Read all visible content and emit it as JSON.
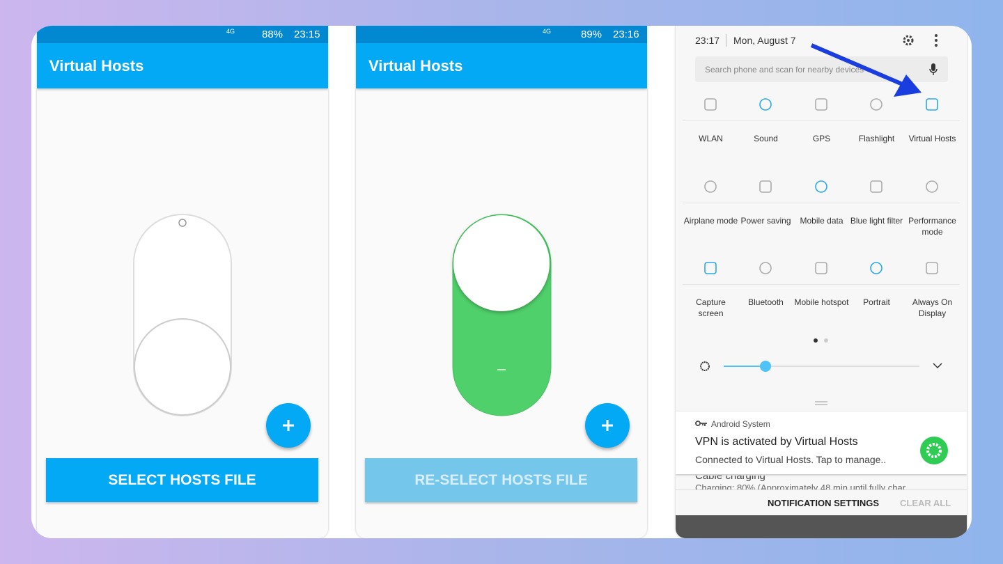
{
  "screens": [
    {
      "status": {
        "network": "4G",
        "battery": "88%",
        "time": "23:15"
      },
      "app_bar": "Virtual Hosts",
      "button": "SELECT HOSTS FILE"
    },
    {
      "status": {
        "network": "4G",
        "battery": "89%",
        "time": "23:16"
      },
      "app_bar": "Virtual Hosts",
      "button": "RE-SELECT HOSTS FILE"
    }
  ],
  "panel": {
    "time": "23:17",
    "date": "Mon, August 7",
    "search": "Search phone and scan for nearby devices",
    "tiles": [
      "WLAN",
      "Sound",
      "GPS",
      "Flashlight",
      "Virtual Hosts",
      "Airplane mode",
      "Power saving",
      "Mobile data",
      "Blue light filter",
      "Performance mode",
      "Capture screen",
      "Bluetooth",
      "Mobile hotspot",
      "Portrait",
      "Always On Display"
    ],
    "notification": {
      "app": "Android System",
      "title": "VPN is activated by Virtual Hosts",
      "text": "Connected to Virtual Hosts. Tap to manage..",
      "next_title": "Cable charging",
      "next_text": "Charging: 80% (Approximately 48 min until fully char..."
    },
    "actions": [
      "NOTIFICATION SETTINGS",
      "CLEAR ALL"
    ]
  }
}
